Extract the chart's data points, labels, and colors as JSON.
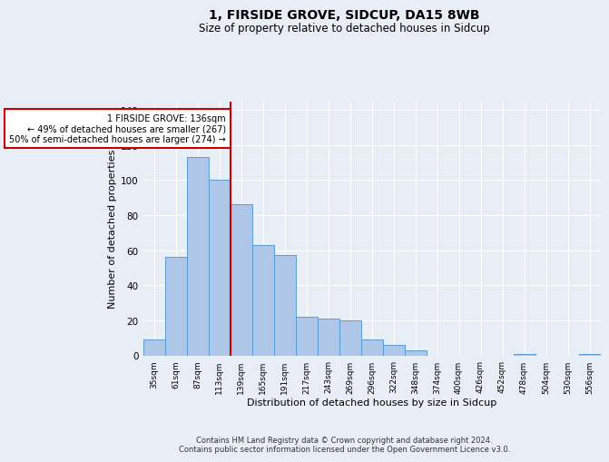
{
  "title_line1": "1, FIRSIDE GROVE, SIDCUP, DA15 8WB",
  "title_line2": "Size of property relative to detached houses in Sidcup",
  "xlabel": "Distribution of detached houses by size in Sidcup",
  "ylabel": "Number of detached properties",
  "bin_labels": [
    "35sqm",
    "61sqm",
    "87sqm",
    "113sqm",
    "139sqm",
    "165sqm",
    "191sqm",
    "217sqm",
    "243sqm",
    "269sqm",
    "296sqm",
    "322sqm",
    "348sqm",
    "374sqm",
    "400sqm",
    "426sqm",
    "452sqm",
    "478sqm",
    "504sqm",
    "530sqm",
    "556sqm"
  ],
  "bar_values": [
    9,
    56,
    113,
    100,
    86,
    63,
    57,
    22,
    21,
    20,
    9,
    6,
    3,
    0,
    0,
    0,
    0,
    1,
    0,
    0,
    1
  ],
  "bar_color": "#aec6e8",
  "bar_edge_color": "#5b9bd5",
  "bar_width": 1.0,
  "vline_x_index": 4,
  "vline_color": "#cc0000",
  "annotation_text": "1 FIRSIDE GROVE: 136sqm\n← 49% of detached houses are smaller (267)\n50% of semi-detached houses are larger (274) →",
  "annotation_box_facecolor": "#ffffff",
  "annotation_box_edgecolor": "#cc0000",
  "ylim": [
    0,
    145
  ],
  "yticks": [
    0,
    20,
    40,
    60,
    80,
    100,
    120,
    140
  ],
  "background_color": "#e8eef5",
  "grid_color": "#ffffff",
  "footer_line1": "Contains HM Land Registry data © Crown copyright and database right 2024.",
  "footer_line2": "Contains public sector information licensed under the Open Government Licence v3.0."
}
